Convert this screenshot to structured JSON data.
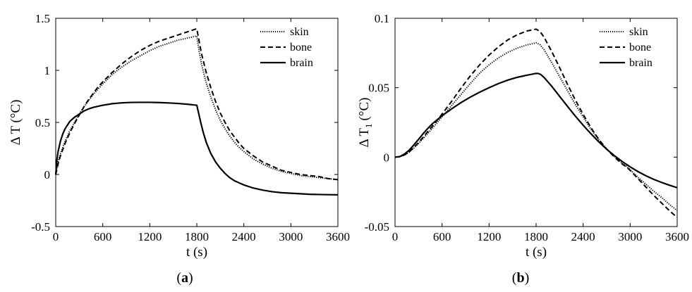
{
  "chart_data": [
    {
      "type": "line",
      "panel_label_open": "(",
      "panel_label_letter": "a",
      "panel_label_close": ")",
      "xlabel": "t (s)",
      "ylabel": "Δ T (°C)",
      "xlim": [
        0,
        3600
      ],
      "ylim": [
        -0.5,
        1.5
      ],
      "xticks": [
        "0",
        "600",
        "1200",
        "1800",
        "2400",
        "3000",
        "3600"
      ],
      "yticks": [
        "-0.5",
        "0",
        "0.5",
        "1",
        "1.5"
      ],
      "legend_position": "top-right",
      "grid": false,
      "series": [
        {
          "name": "skin",
          "style": "dotted",
          "x": [
            0,
            30,
            60,
            120,
            180,
            240,
            300,
            360,
            420,
            480,
            540,
            600,
            720,
            840,
            960,
            1080,
            1200,
            1320,
            1440,
            1560,
            1680,
            1800,
            1830,
            1860,
            1920,
            1980,
            2040,
            2100,
            2160,
            2220,
            2280,
            2340,
            2400,
            2520,
            2640,
            2760,
            2880,
            3000,
            3120,
            3240,
            3360,
            3480,
            3600
          ],
          "y": [
            0,
            0.12,
            0.2,
            0.32,
            0.42,
            0.5,
            0.58,
            0.65,
            0.71,
            0.77,
            0.82,
            0.87,
            0.96,
            1.03,
            1.09,
            1.14,
            1.19,
            1.23,
            1.26,
            1.29,
            1.31,
            1.33,
            1.18,
            1.06,
            0.88,
            0.74,
            0.62,
            0.52,
            0.44,
            0.37,
            0.31,
            0.26,
            0.22,
            0.15,
            0.1,
            0.06,
            0.03,
            0.01,
            -0.01,
            -0.02,
            -0.03,
            -0.04,
            -0.05
          ]
        },
        {
          "name": "bone",
          "style": "dashed",
          "x": [
            0,
            30,
            60,
            120,
            180,
            240,
            300,
            360,
            420,
            480,
            540,
            600,
            720,
            840,
            960,
            1080,
            1200,
            1320,
            1440,
            1560,
            1680,
            1800,
            1830,
            1860,
            1920,
            1980,
            2040,
            2100,
            2160,
            2220,
            2280,
            2340,
            2400,
            2520,
            2640,
            2760,
            2880,
            3000,
            3120,
            3240,
            3360,
            3480,
            3600
          ],
          "y": [
            0,
            0.1,
            0.18,
            0.3,
            0.4,
            0.49,
            0.57,
            0.65,
            0.72,
            0.78,
            0.84,
            0.89,
            0.98,
            1.06,
            1.13,
            1.19,
            1.24,
            1.28,
            1.31,
            1.34,
            1.37,
            1.4,
            1.28,
            1.16,
            0.98,
            0.83,
            0.7,
            0.59,
            0.5,
            0.42,
            0.36,
            0.3,
            0.25,
            0.18,
            0.12,
            0.08,
            0.04,
            0.02,
            0.0,
            -0.01,
            -0.02,
            -0.04,
            -0.05
          ]
        },
        {
          "name": "brain",
          "style": "solid",
          "x": [
            0,
            15,
            30,
            60,
            90,
            120,
            180,
            240,
            300,
            360,
            420,
            480,
            600,
            720,
            840,
            960,
            1080,
            1200,
            1320,
            1440,
            1560,
            1680,
            1800,
            1820,
            1850,
            1880,
            1920,
            1980,
            2040,
            2100,
            2160,
            2220,
            2280,
            2340,
            2400,
            2520,
            2640,
            2760,
            2880,
            3000,
            3120,
            3240,
            3360,
            3480,
            3600
          ],
          "y": [
            0,
            0.14,
            0.22,
            0.32,
            0.39,
            0.44,
            0.51,
            0.55,
            0.58,
            0.61,
            0.63,
            0.645,
            0.665,
            0.68,
            0.688,
            0.692,
            0.693,
            0.693,
            0.691,
            0.687,
            0.682,
            0.675,
            0.665,
            0.6,
            0.5,
            0.41,
            0.31,
            0.2,
            0.12,
            0.06,
            0.01,
            -0.03,
            -0.06,
            -0.08,
            -0.1,
            -0.13,
            -0.15,
            -0.165,
            -0.175,
            -0.18,
            -0.185,
            -0.19,
            -0.192,
            -0.194,
            -0.195
          ]
        }
      ]
    },
    {
      "type": "line",
      "panel_label_open": "(",
      "panel_label_letter": "b",
      "panel_label_close": ")",
      "xlabel": "t (s)",
      "ylabel_main": "Δ T",
      "ylabel_sub": "1",
      "ylabel_unit": "(°C)",
      "xlim": [
        0,
        3600
      ],
      "ylim": [
        -0.05,
        0.1
      ],
      "xticks": [
        "0",
        "600",
        "1200",
        "1800",
        "2400",
        "3000",
        "3600"
      ],
      "yticks": [
        "-0.05",
        "0",
        "0.05",
        "0.1"
      ],
      "legend_position": "top-right",
      "grid": false,
      "series": [
        {
          "name": "skin",
          "style": "dotted",
          "x": [
            0,
            60,
            120,
            180,
            240,
            300,
            360,
            420,
            480,
            600,
            720,
            840,
            960,
            1080,
            1200,
            1320,
            1440,
            1560,
            1680,
            1800,
            1850,
            1900,
            2000,
            2100,
            2200,
            2300,
            2400,
            2500,
            2600,
            2700,
            2800,
            2900,
            2950,
            3000,
            3100,
            3200,
            3300,
            3400,
            3500,
            3600
          ],
          "y": [
            0,
            0.0003,
            0.0015,
            0.0035,
            0.0065,
            0.0098,
            0.0135,
            0.0172,
            0.021,
            0.029,
            0.037,
            0.045,
            0.053,
            0.0605,
            0.0665,
            0.0715,
            0.0755,
            0.0785,
            0.0808,
            0.0823,
            0.081,
            0.0775,
            0.068,
            0.058,
            0.048,
            0.038,
            0.029,
            0.02,
            0.0125,
            0.006,
            0.0005,
            -0.0045,
            -0.0065,
            -0.009,
            -0.0145,
            -0.0195,
            -0.0245,
            -0.029,
            -0.034,
            -0.0385
          ]
        },
        {
          "name": "bone",
          "style": "dashed",
          "x": [
            0,
            60,
            120,
            180,
            240,
            300,
            360,
            420,
            480,
            600,
            720,
            840,
            960,
            1080,
            1200,
            1320,
            1440,
            1560,
            1680,
            1800,
            1850,
            1900,
            2000,
            2100,
            2200,
            2300,
            2400,
            2500,
            2600,
            2700,
            2800,
            2900,
            2950,
            3000,
            3100,
            3200,
            3300,
            3400,
            3500,
            3600
          ],
          "y": [
            0,
            0.0003,
            0.0016,
            0.0038,
            0.007,
            0.0105,
            0.0145,
            0.0185,
            0.0225,
            0.031,
            0.04,
            0.0495,
            0.0585,
            0.0665,
            0.0735,
            0.0795,
            0.0845,
            0.0882,
            0.0908,
            0.0922,
            0.0905,
            0.0865,
            0.076,
            0.0645,
            0.0525,
            0.0412,
            0.0308,
            0.0212,
            0.0128,
            0.0058,
            0.0,
            -0.005,
            -0.007,
            -0.0095,
            -0.0155,
            -0.0215,
            -0.0275,
            -0.033,
            -0.0385,
            -0.0435
          ]
        },
        {
          "name": "brain",
          "style": "solid",
          "x": [
            0,
            60,
            120,
            180,
            240,
            300,
            360,
            420,
            480,
            600,
            720,
            840,
            960,
            1080,
            1200,
            1320,
            1440,
            1560,
            1680,
            1800,
            1830,
            1860,
            1900,
            2000,
            2100,
            2200,
            2300,
            2400,
            2500,
            2600,
            2700,
            2800,
            2900,
            3000,
            3100,
            3200,
            3300,
            3400,
            3500,
            3600
          ],
          "y": [
            0,
            0.0004,
            0.0022,
            0.005,
            0.0088,
            0.0128,
            0.017,
            0.0208,
            0.0242,
            0.0298,
            0.0347,
            0.0392,
            0.0432,
            0.0468,
            0.05,
            0.053,
            0.0555,
            0.0575,
            0.059,
            0.0603,
            0.0602,
            0.0595,
            0.0575,
            0.051,
            0.0438,
            0.0366,
            0.0296,
            0.023,
            0.0168,
            0.011,
            0.0057,
            0.001,
            -0.0032,
            -0.007,
            -0.0104,
            -0.0134,
            -0.016,
            -0.0182,
            -0.0202,
            -0.022
          ]
        }
      ]
    }
  ]
}
